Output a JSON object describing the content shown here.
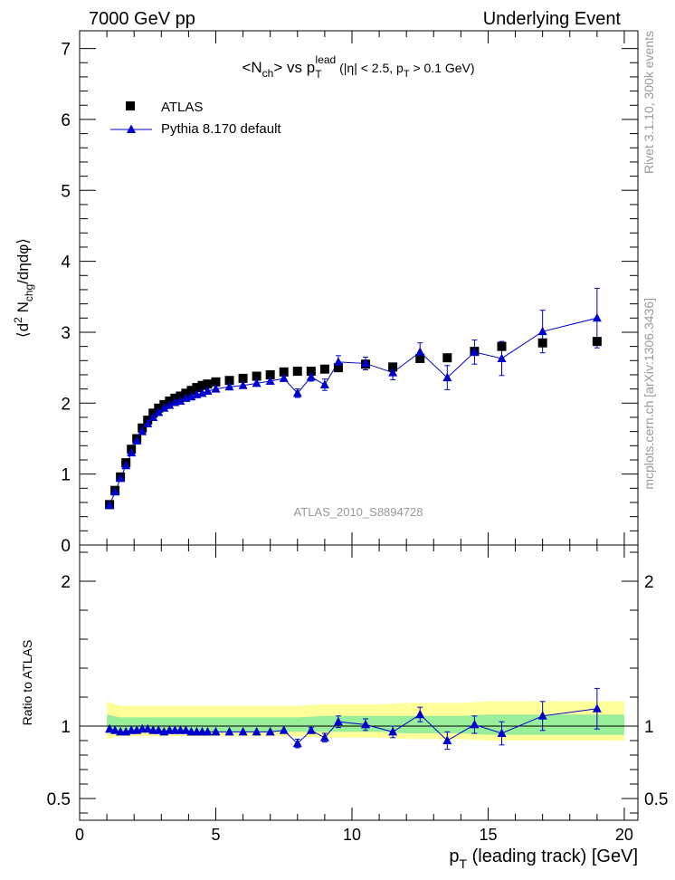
{
  "header": {
    "left": "7000 GeV pp",
    "right": "Underlying Event"
  },
  "title": {
    "a": "<N",
    "a_sub": "ch",
    "b": "> vs p",
    "b_sub": "T",
    "b_sup": "lead",
    "c": " (|η| < 2.5, p",
    "c_sub": "T",
    "d": " > 0.1 GeV)"
  },
  "side_labels": {
    "rivet": "Rivet 3.1.10,  300k events",
    "mcplots": "mcplots.cern.ch [arXiv:1306.3436]"
  },
  "watermark": "ATLAS_2010_S8894728",
  "axes": {
    "top_ylabel": {
      "a": "⟨d",
      "a_sup": "2",
      "b": " N",
      "b_sub": "chg",
      "c": "/dηdφ⟩"
    },
    "ratio_ylabel": "Ratio to ATLAS",
    "xlabel": {
      "a": "p",
      "a_sub": "T",
      "b": " (leading track) [GeV]"
    }
  },
  "legend": {
    "atlas": "ATLAS",
    "pythia": "Pythia 8.170 default"
  },
  "colors": {
    "data": "#000000",
    "mc": "#0000cc",
    "band_outer": "#ffff99",
    "band_inner": "#99ee99"
  },
  "chart_data": [
    {
      "type": "scatter",
      "name": "main",
      "xlim": [
        0,
        20.5
      ],
      "ylim": [
        0,
        7.25
      ],
      "xticks": [
        "0",
        "5",
        "10",
        "15",
        "20"
      ],
      "xtick_values": [
        0,
        5,
        10,
        15,
        20
      ],
      "yticks": [
        "0",
        "1",
        "2",
        "3",
        "4",
        "5",
        "6",
        "7"
      ],
      "ytick_values": [
        0,
        1,
        2,
        3,
        4,
        5,
        6,
        7
      ],
      "series": [
        {
          "name": "ATLAS",
          "x": [
            1.1,
            1.3,
            1.5,
            1.7,
            1.9,
            2.1,
            2.3,
            2.5,
            2.7,
            2.9,
            3.1,
            3.3,
            3.5,
            3.7,
            3.9,
            4.1,
            4.3,
            4.5,
            4.7,
            5.0,
            5.5,
            6.0,
            6.5,
            7.0,
            7.5,
            8.0,
            8.5,
            9.0,
            9.5,
            10.5,
            11.5,
            12.5,
            13.5,
            14.5,
            15.5,
            17.0,
            19.0
          ],
          "y": [
            0.57,
            0.77,
            0.96,
            1.16,
            1.35,
            1.5,
            1.65,
            1.76,
            1.86,
            1.93,
            1.98,
            2.03,
            2.07,
            2.1,
            2.14,
            2.18,
            2.22,
            2.25,
            2.27,
            2.3,
            2.32,
            2.35,
            2.38,
            2.4,
            2.44,
            2.45,
            2.45,
            2.48,
            2.5,
            2.55,
            2.51,
            2.63,
            2.64,
            2.73,
            2.8,
            2.85,
            2.87
          ]
        },
        {
          "name": "Pythia 8.170 default",
          "x": [
            1.1,
            1.3,
            1.5,
            1.7,
            1.9,
            2.1,
            2.3,
            2.5,
            2.7,
            2.9,
            3.1,
            3.3,
            3.5,
            3.7,
            3.9,
            4.1,
            4.3,
            4.5,
            4.7,
            5.0,
            5.5,
            6.0,
            6.5,
            7.0,
            7.5,
            8.0,
            8.5,
            9.0,
            9.5,
            10.5,
            11.5,
            12.5,
            13.5,
            14.5,
            15.5,
            17.0,
            19.0
          ],
          "y": [
            0.56,
            0.75,
            0.94,
            1.12,
            1.3,
            1.47,
            1.6,
            1.71,
            1.8,
            1.87,
            1.93,
            1.97,
            2.01,
            2.03,
            2.07,
            2.09,
            2.12,
            2.14,
            2.17,
            2.2,
            2.23,
            2.25,
            2.28,
            2.31,
            2.35,
            2.14,
            2.37,
            2.26,
            2.58,
            2.56,
            2.43,
            2.72,
            2.36,
            2.72,
            2.63,
            3.01,
            3.2
          ],
          "yerr": [
            0.01,
            0.01,
            0.01,
            0.01,
            0.01,
            0.01,
            0.01,
            0.01,
            0.01,
            0.01,
            0.02,
            0.02,
            0.02,
            0.02,
            0.02,
            0.02,
            0.02,
            0.02,
            0.02,
            0.02,
            0.02,
            0.02,
            0.03,
            0.03,
            0.04,
            0.06,
            0.06,
            0.08,
            0.09,
            0.09,
            0.1,
            0.13,
            0.17,
            0.17,
            0.24,
            0.3,
            0.42
          ]
        }
      ]
    },
    {
      "type": "scatter",
      "name": "ratio",
      "ylabel": "Ratio to ATLAS",
      "xlabel": "p_T (leading track) [GeV]",
      "xlim": [
        0,
        20.5
      ],
      "ylim": [
        0.35,
        2.25
      ],
      "yticks": [
        "0.5",
        "1",
        "2"
      ],
      "ytick_values": [
        0.5,
        1,
        2
      ],
      "band_x": [
        1.0,
        1.5,
        2.5,
        5.0,
        7.5,
        8.0,
        9.0,
        10.0,
        11.0,
        12.0,
        13.0,
        14.0,
        15.0,
        16.0,
        18.0,
        20.0
      ],
      "band_outer_low": [
        0.91,
        0.93,
        0.93,
        0.93,
        0.93,
        0.93,
        0.92,
        0.92,
        0.92,
        0.91,
        0.91,
        0.91,
        0.9,
        0.9,
        0.9,
        0.9
      ],
      "band_outer_high": [
        1.17,
        1.14,
        1.14,
        1.14,
        1.14,
        1.14,
        1.15,
        1.15,
        1.15,
        1.16,
        1.16,
        1.16,
        1.17,
        1.17,
        1.17,
        1.17
      ],
      "band_inner_low": [
        0.95,
        0.96,
        0.96,
        0.96,
        0.96,
        0.96,
        0.96,
        0.96,
        0.96,
        0.95,
        0.95,
        0.95,
        0.94,
        0.94,
        0.94,
        0.94
      ],
      "band_inner_high": [
        1.08,
        1.06,
        1.06,
        1.06,
        1.06,
        1.06,
        1.07,
        1.07,
        1.07,
        1.07,
        1.07,
        1.07,
        1.08,
        1.08,
        1.08,
        1.08
      ],
      "series": [
        {
          "name": "Pythia 8.170 default / ATLAS",
          "x": [
            1.1,
            1.3,
            1.5,
            1.7,
            1.9,
            2.1,
            2.3,
            2.5,
            2.7,
            2.9,
            3.1,
            3.3,
            3.5,
            3.7,
            3.9,
            4.1,
            4.3,
            4.5,
            4.7,
            5.0,
            5.5,
            6.0,
            6.5,
            7.0,
            7.5,
            8.0,
            8.5,
            9.0,
            9.5,
            10.5,
            11.5,
            12.5,
            13.5,
            14.5,
            15.5,
            17.0,
            19.0
          ],
          "y": [
            0.98,
            0.97,
            0.96,
            0.96,
            0.97,
            0.97,
            0.98,
            0.98,
            0.97,
            0.97,
            0.96,
            0.97,
            0.97,
            0.97,
            0.97,
            0.96,
            0.96,
            0.96,
            0.96,
            0.96,
            0.96,
            0.96,
            0.96,
            0.96,
            0.97,
            0.88,
            0.97,
            0.92,
            1.03,
            1.01,
            0.96,
            1.08,
            0.9,
            1.01,
            0.95,
            1.07,
            1.12
          ],
          "yerr": [
            0.01,
            0.01,
            0.01,
            0.01,
            0.01,
            0.01,
            0.01,
            0.01,
            0.01,
            0.01,
            0.01,
            0.01,
            0.01,
            0.01,
            0.01,
            0.01,
            0.01,
            0.01,
            0.01,
            0.01,
            0.01,
            0.01,
            0.01,
            0.01,
            0.01,
            0.03,
            0.02,
            0.03,
            0.04,
            0.04,
            0.04,
            0.05,
            0.06,
            0.06,
            0.08,
            0.1,
            0.14
          ]
        }
      ]
    }
  ]
}
